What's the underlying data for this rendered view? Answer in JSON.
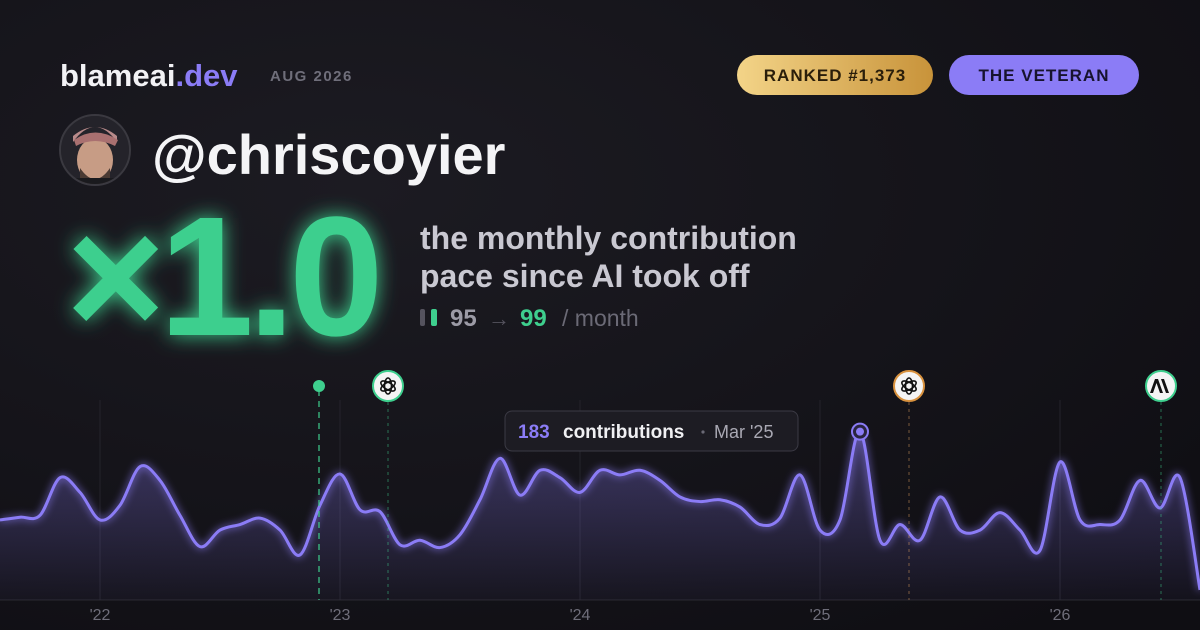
{
  "brand": {
    "name": "blameai",
    "tld": ".dev"
  },
  "period": "AUG 2026",
  "badges": [
    "RANKED #1,373",
    "THE VETERAN"
  ],
  "handle": "@chriscoyier",
  "multiplier": "×1.0",
  "description": [
    "the monthly contribution",
    "pace since AI took off"
  ],
  "pace": {
    "before": 95,
    "arrow": "→",
    "after": 99,
    "unit": "/ month"
  },
  "chart_data": {
    "type": "area",
    "color": "#8b7cf6",
    "categories": [
      null,
      null,
      null,
      null,
      null,
      "'22",
      null,
      null,
      null,
      null,
      null,
      null,
      null,
      null,
      null,
      null,
      null,
      "'23",
      null,
      null,
      null,
      null,
      null,
      null,
      null,
      null,
      null,
      null,
      null,
      "'24",
      null,
      null,
      null,
      null,
      null,
      null,
      null,
      null,
      null,
      null,
      null,
      "'25",
      null,
      null,
      null,
      null,
      null,
      null,
      null,
      null,
      null,
      null,
      null,
      "'26",
      null,
      null,
      null,
      null,
      null,
      null,
      null
    ],
    "values": [
      87,
      90,
      92,
      133,
      117,
      87,
      103,
      145,
      130,
      92,
      58,
      76,
      82,
      89,
      76,
      49,
      103,
      137,
      98,
      96,
      60,
      65,
      57,
      71,
      109,
      154,
      114,
      141,
      133,
      117,
      141,
      136,
      141,
      130,
      112,
      107,
      109,
      101,
      82,
      89,
      136,
      76,
      87,
      183,
      65,
      82,
      65,
      112,
      76,
      76,
      95,
      76,
      54,
      150,
      87,
      82,
      87,
      130,
      100,
      133,
      11
    ],
    "ylim": [
      0,
      250
    ],
    "tooltip": {
      "label": "contributions",
      "date": "Mar '25"
    }
  }
}
